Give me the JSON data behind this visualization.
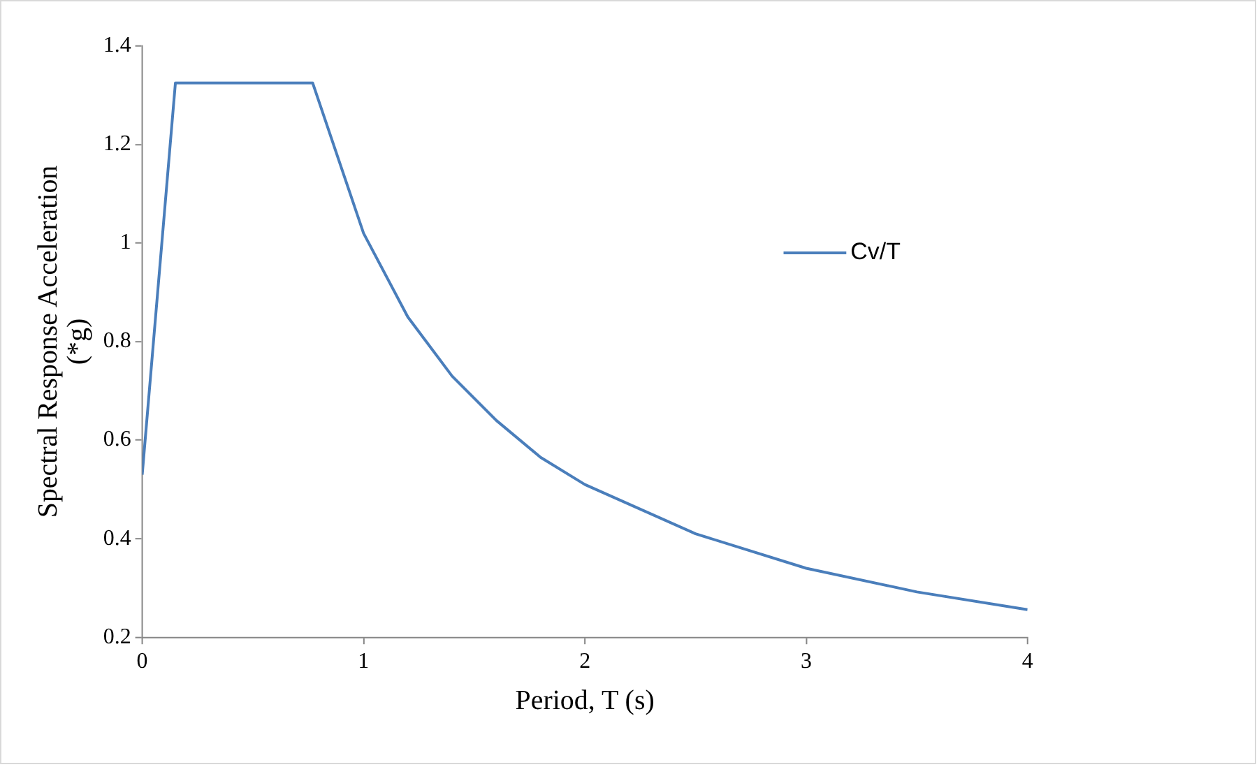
{
  "chart_data": {
    "type": "line",
    "xlabel": "Period, T (s)",
    "ylabel": "Spectral Response Acceleration (*g)",
    "series": [
      {
        "name": "Cv/T",
        "color": "#4a7ebb",
        "x": [
          0,
          0.15,
          0.77,
          1,
          1.2,
          1.4,
          1.6,
          1.8,
          2,
          2.5,
          3,
          3.5,
          4
        ],
        "values": [
          0.53,
          1.325,
          1.325,
          1.02,
          0.85,
          0.73,
          0.64,
          0.565,
          0.51,
          0.41,
          0.34,
          0.292,
          0.256
        ]
      }
    ],
    "xlim": [
      0,
      4
    ],
    "xticks": [
      0,
      1,
      2,
      3,
      4
    ],
    "ylim": [
      0.2,
      1.4
    ],
    "yticks": [
      0.2,
      0.4,
      0.6,
      0.8,
      1,
      1.2,
      1.4
    ],
    "grid": false,
    "legend": "right",
    "marker": "none",
    "line_style": "solid"
  }
}
